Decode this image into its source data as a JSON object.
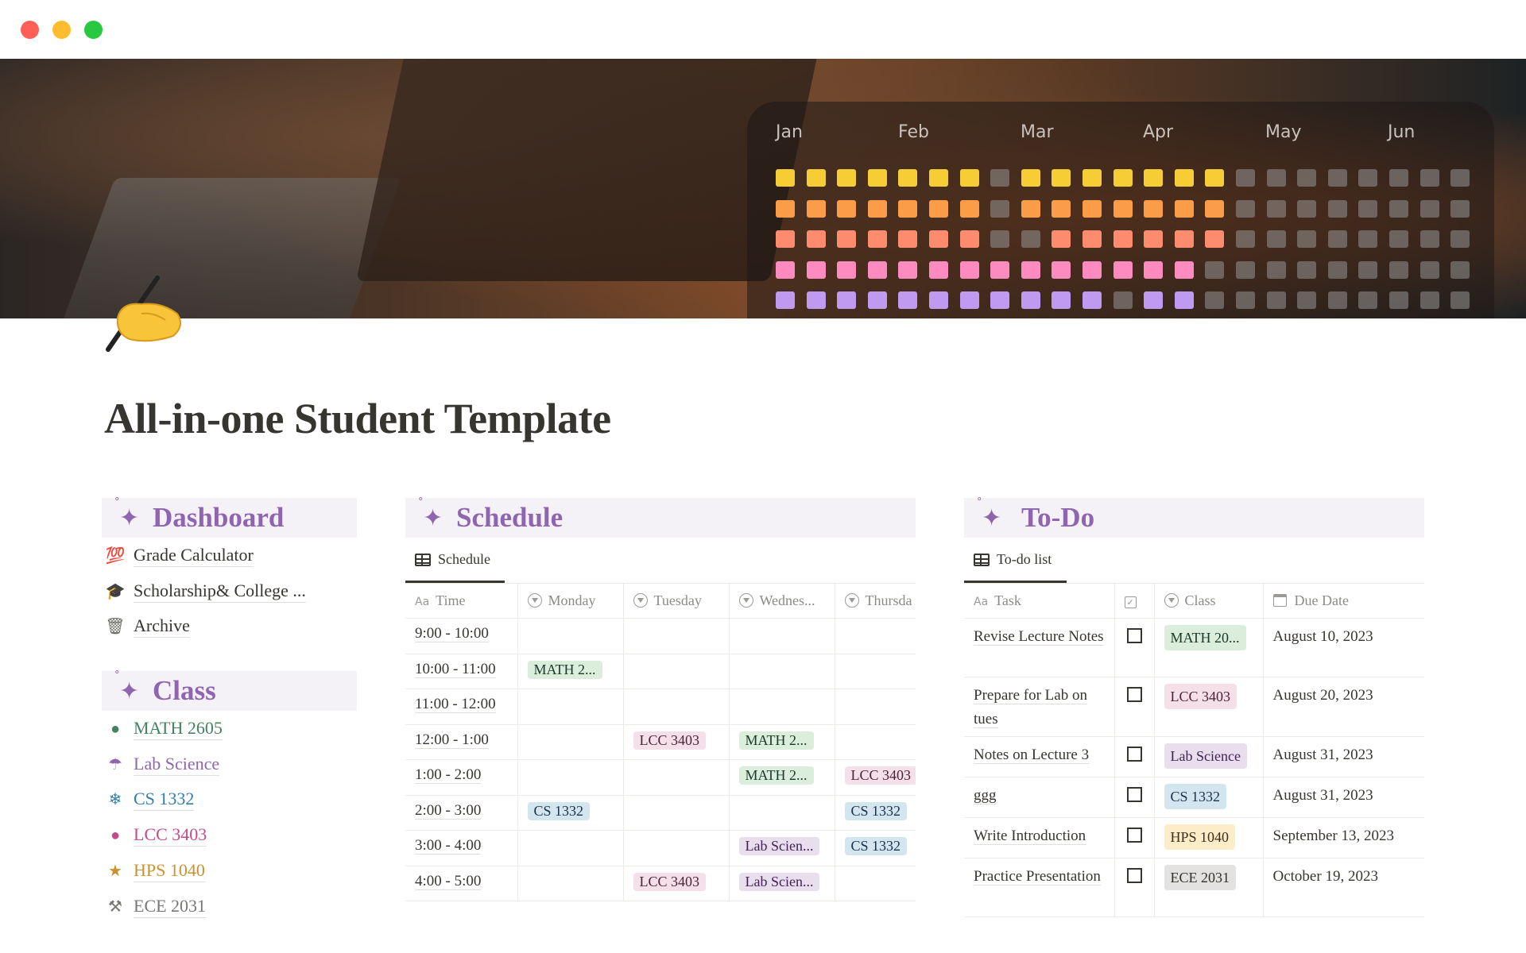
{
  "window": {
    "controls": [
      "close",
      "minimize",
      "maximize"
    ],
    "control_colors": [
      "#fe5f57",
      "#febc2e",
      "#28c840"
    ]
  },
  "banner": {
    "months": [
      "Jan",
      "Feb",
      "Mar",
      "Apr",
      "May",
      "Jun"
    ],
    "tracker_rows": [
      {
        "color": "#f7cd35",
        "pattern": "11111110111111100000000"
      },
      {
        "color": "#fb9d48",
        "pattern": "11111110111111100000000"
      },
      {
        "color": "#fd8c6f",
        "pattern": "11111110011111100000000"
      },
      {
        "color": "#fd8bc0",
        "pattern": "11111111111111000000000"
      },
      {
        "color": "#bf9af0",
        "pattern": "11111111111011000000000"
      },
      {
        "color": "#3dc4ec",
        "pattern": "11011111100111000000000"
      }
    ]
  },
  "page": {
    "icon": "writing-hand-icon",
    "title": "All-in-one Student Template"
  },
  "dashboard": {
    "heading": "Dashboard",
    "items": [
      {
        "icon": "hundred-points-icon",
        "glyph": "💯",
        "label": "Grade Calculator"
      },
      {
        "icon": "graduation-cap-icon",
        "glyph": "🎓",
        "label": "Scholarship& College ..."
      },
      {
        "icon": "wastebasket-icon",
        "glyph": "🗑",
        "label": "Archive"
      }
    ]
  },
  "classes": {
    "heading": "Class",
    "items": [
      {
        "icon": "green-apple-icon",
        "glyph": "●",
        "label": "MATH 2605",
        "color": "#448361"
      },
      {
        "icon": "umbrella-icon",
        "glyph": "☂",
        "label": "Lab Science",
        "color": "#9065b0"
      },
      {
        "icon": "snowflake-icon",
        "glyph": "❄",
        "label": "CS 1332",
        "color": "#337ea9"
      },
      {
        "icon": "brain-icon",
        "glyph": "●",
        "label": "LCC 3403",
        "color": "#c14c8a"
      },
      {
        "icon": "star-icon",
        "glyph": "★",
        "label": "HPS 1040",
        "color": "#cb912f"
      },
      {
        "icon": "tool-icon",
        "glyph": "⚒",
        "label": "ECE 2031",
        "color": "#787774"
      }
    ]
  },
  "tag_styles": {
    "green": {
      "bg": "#dbeddb",
      "fg": "#1c3829"
    },
    "pink": {
      "bg": "#f5e0e9",
      "fg": "#4c2337"
    },
    "blue": {
      "bg": "#d3e5ef",
      "fg": "#183347"
    },
    "purple": {
      "bg": "#e8deee",
      "fg": "#412454"
    },
    "yellow": {
      "bg": "#fdecc8",
      "fg": "#402c1b"
    },
    "gray": {
      "bg": "#e3e2e0",
      "fg": "#32302c"
    }
  },
  "schedule": {
    "heading": "Schedule",
    "view_tab": "Schedule",
    "columns": [
      "Time",
      "Monday",
      "Tuesday",
      "Wednes...",
      "Thursda"
    ],
    "rows": [
      {
        "time": "9:00 - 10:00",
        "cells": [
          null,
          null,
          null,
          null
        ]
      },
      {
        "time": "10:00 - 11:00",
        "cells": [
          {
            "text": "MATH 2...",
            "color": "green"
          },
          null,
          null,
          null
        ]
      },
      {
        "time": "11:00 - 12:00",
        "cells": [
          null,
          null,
          null,
          null
        ]
      },
      {
        "time": "12:00 - 1:00",
        "cells": [
          null,
          {
            "text": "LCC 3403",
            "color": "pink"
          },
          {
            "text": "MATH 2...",
            "color": "green"
          },
          null
        ]
      },
      {
        "time": "1:00 - 2:00",
        "cells": [
          null,
          null,
          {
            "text": "MATH 2...",
            "color": "green"
          },
          {
            "text": "LCC 3403",
            "color": "pink"
          }
        ]
      },
      {
        "time": "2:00 - 3:00",
        "cells": [
          {
            "text": "CS 1332",
            "color": "blue"
          },
          null,
          null,
          {
            "text": "CS 1332",
            "color": "blue"
          }
        ]
      },
      {
        "time": "3:00 - 4:00",
        "cells": [
          null,
          null,
          {
            "text": "Lab Scien...",
            "color": "purple"
          },
          {
            "text": "CS 1332",
            "color": "blue"
          }
        ]
      },
      {
        "time": "4:00 - 5:00",
        "cells": [
          null,
          {
            "text": "LCC 3403",
            "color": "pink"
          },
          {
            "text": "Lab Scien...",
            "color": "purple"
          },
          null
        ]
      }
    ]
  },
  "todo": {
    "heading": "To-Do",
    "view_tab": "To-do list",
    "columns": [
      "Task",
      "",
      "Class",
      "Due Date"
    ],
    "rows": [
      {
        "task": "Revise Lecture Notes",
        "done": false,
        "class": "MATH 20...",
        "color": "green",
        "due": "August 10, 2023"
      },
      {
        "task": "Prepare for Lab on tues",
        "done": false,
        "class": "LCC 3403",
        "color": "pink",
        "due": "August 20, 2023"
      },
      {
        "task": "Notes on Lecture 3",
        "done": false,
        "class": "Lab Science",
        "color": "purple",
        "due": "August 31, 2023"
      },
      {
        "task": "ggg",
        "done": false,
        "class": "CS 1332",
        "color": "blue",
        "due": "August 31, 2023"
      },
      {
        "task": "Write Introduction",
        "done": false,
        "class": "HPS 1040",
        "color": "yellow",
        "due": "September 13, 2023"
      },
      {
        "task": "Practice Presentation",
        "done": false,
        "class": "ECE 2031",
        "color": "gray",
        "due": "October 19, 2023"
      }
    ]
  }
}
